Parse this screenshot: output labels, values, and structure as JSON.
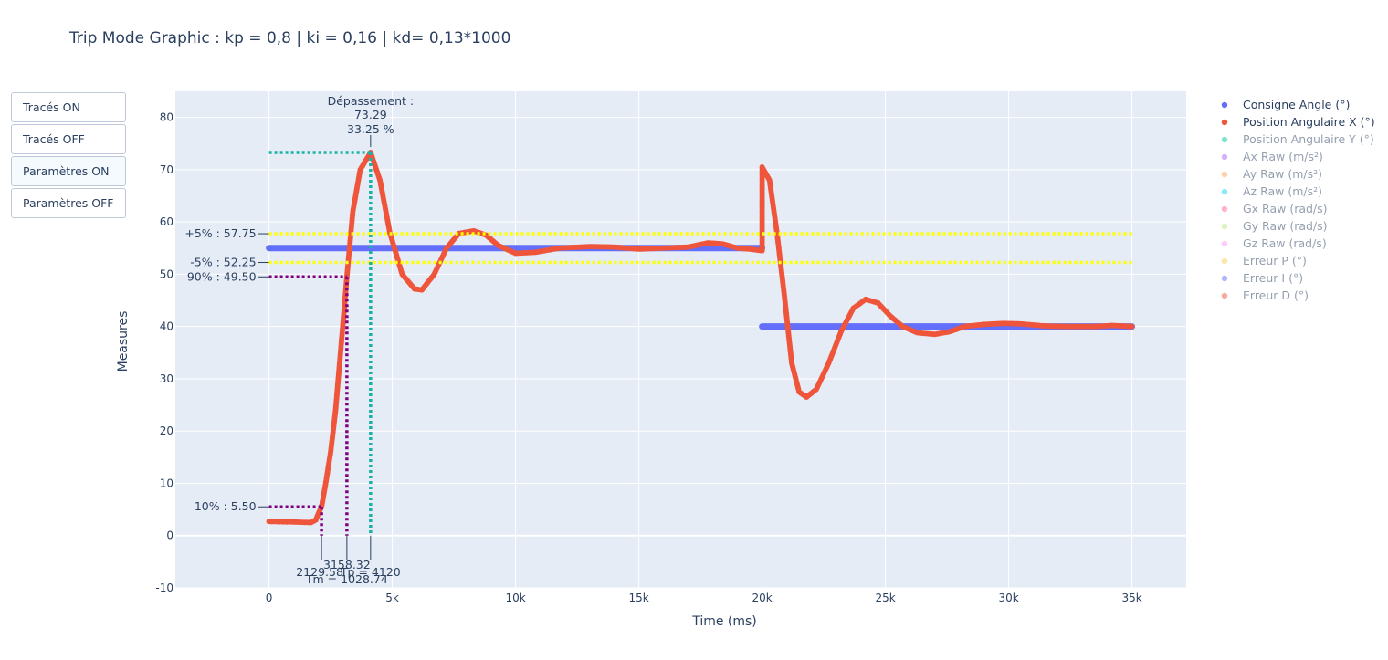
{
  "title": "Trip Mode Graphic : kp = 0,8 | ki = 0,16 | kd= 0,13*1000",
  "buttons": [
    {
      "label": "Tracés ON",
      "active": false
    },
    {
      "label": "Tracés OFF",
      "active": false
    },
    {
      "label": "Paramètres ON",
      "active": true
    },
    {
      "label": "Paramètres OFF",
      "active": false
    }
  ],
  "colors": {
    "plot_bg": "#e5ecf6",
    "grid": "#ffffff",
    "consigne": "#636efa",
    "position_x": "#ef553b",
    "band": "#ffff00",
    "rise": "#800080",
    "overshoot": "#19b3a4"
  },
  "chart_data": {
    "type": "scatter",
    "xlabel": "Time (ms)",
    "ylabel": "Measures",
    "xlim": [
      -3800,
      37200
    ],
    "ylim": [
      -10,
      85
    ],
    "x_ticks": [
      0,
      5000,
      10000,
      15000,
      20000,
      25000,
      30000,
      35000
    ],
    "x_tick_labels": [
      "0",
      "5k",
      "10k",
      "15k",
      "20k",
      "25k",
      "30k",
      "35k"
    ],
    "y_ticks": [
      -10,
      0,
      10,
      20,
      30,
      40,
      50,
      60,
      70,
      80
    ],
    "grid": true,
    "legend_position": "right",
    "legend": [
      {
        "name": "Consigne Angle (°)",
        "color": "#636efa",
        "visible": true
      },
      {
        "name": "Position Angulaire X (°)",
        "color": "#ef553b",
        "visible": true
      },
      {
        "name": "Position Angulaire Y (°)",
        "color": "#00cc96",
        "visible": false
      },
      {
        "name": "Ax Raw (m/s²)",
        "color": "#ab63fa",
        "visible": false
      },
      {
        "name": "Ay Raw (m/s²)",
        "color": "#ffa15a",
        "visible": false
      },
      {
        "name": "Az Raw (m/s²)",
        "color": "#19d3f3",
        "visible": false
      },
      {
        "name": "Gx Raw (rad/s)",
        "color": "#ff6692",
        "visible": false
      },
      {
        "name": "Gy Raw (rad/s)",
        "color": "#b6e880",
        "visible": false
      },
      {
        "name": "Gz Raw (rad/s)",
        "color": "#ff97ff",
        "visible": false
      },
      {
        "name": "Erreur P (°)",
        "color": "#fecb52",
        "visible": false
      },
      {
        "name": "Erreur I (°)",
        "color": "#636efa",
        "visible": false
      },
      {
        "name": "Erreur D (°)",
        "color": "#ef553b",
        "visible": false
      }
    ],
    "consigne_segments": [
      {
        "x": [
          0,
          20000
        ],
        "y": 55
      },
      {
        "x": [
          20000,
          35000
        ],
        "y": 40
      }
    ],
    "position_x_keypoints": [
      [
        0,
        2.7
      ],
      [
        1000,
        2.6
      ],
      [
        1700,
        2.5
      ],
      [
        1900,
        3.0
      ],
      [
        2000,
        4.2
      ],
      [
        2130,
        5.5
      ],
      [
        2300,
        10
      ],
      [
        2500,
        16
      ],
      [
        2700,
        24
      ],
      [
        2900,
        35
      ],
      [
        3158,
        49.5
      ],
      [
        3400,
        62
      ],
      [
        3700,
        70
      ],
      [
        4120,
        73.29
      ],
      [
        4500,
        68
      ],
      [
        4900,
        58
      ],
      [
        5400,
        50
      ],
      [
        5900,
        47.2
      ],
      [
        6200,
        47
      ],
      [
        6700,
        50
      ],
      [
        7200,
        55
      ],
      [
        7700,
        57.8
      ],
      [
        8300,
        58.3
      ],
      [
        8800,
        57.5
      ],
      [
        9300,
        55.5
      ],
      [
        10000,
        54
      ],
      [
        10800,
        54.2
      ],
      [
        11800,
        55
      ],
      [
        13000,
        55.3
      ],
      [
        14000,
        55.2
      ],
      [
        15000,
        54.8
      ],
      [
        16000,
        55
      ],
      [
        17000,
        55.2
      ],
      [
        17800,
        56
      ],
      [
        18400,
        55.8
      ],
      [
        19000,
        55
      ],
      [
        19500,
        54.8
      ],
      [
        20000,
        54.5
      ],
      [
        20000,
        70.5
      ],
      [
        20300,
        68
      ],
      [
        20600,
        58
      ],
      [
        20900,
        46
      ],
      [
        21200,
        33
      ],
      [
        21500,
        27.5
      ],
      [
        21800,
        26.5
      ],
      [
        22200,
        28
      ],
      [
        22700,
        33
      ],
      [
        23200,
        39
      ],
      [
        23700,
        43.5
      ],
      [
        24200,
        45.2
      ],
      [
        24700,
        44.5
      ],
      [
        25200,
        42
      ],
      [
        25700,
        40
      ],
      [
        26300,
        38.8
      ],
      [
        27000,
        38.5
      ],
      [
        27600,
        39
      ],
      [
        28200,
        40
      ],
      [
        29000,
        40.4
      ],
      [
        29800,
        40.6
      ],
      [
        30500,
        40.5
      ],
      [
        31500,
        40.1
      ],
      [
        32500,
        40
      ],
      [
        33500,
        40
      ],
      [
        34200,
        40.2
      ],
      [
        35000,
        40
      ]
    ],
    "reference_lines": [
      {
        "type": "band",
        "value": 57.75,
        "label": "+5% : 57.75"
      },
      {
        "type": "band",
        "value": 52.25,
        "label": "-5% : 52.25"
      },
      {
        "type": "rise",
        "value": 49.5,
        "x_end": 3158.32,
        "label": "90% : 49.50"
      },
      {
        "type": "rise",
        "value": 5.5,
        "x_end": 2129.58,
        "label": "10% : 5.50"
      },
      {
        "type": "overshoot",
        "value": 73.29,
        "x_end": 4120
      }
    ],
    "annotations": {
      "overshoot_line1": "Dépassement :",
      "overshoot_line2": "73.29",
      "overshoot_line3": "33.25 %",
      "t10": "2129.58",
      "t90": "3158.32",
      "tp": "Tp = 4120",
      "tm": "Tm = 1028.74"
    }
  }
}
